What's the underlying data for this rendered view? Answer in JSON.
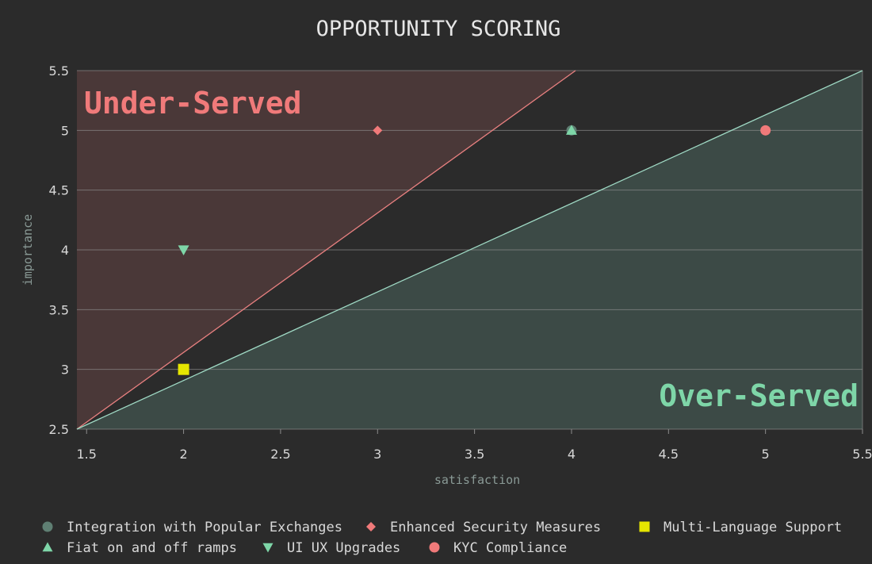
{
  "chart_data": {
    "type": "scatter",
    "title": "OPPORTUNITY SCORING",
    "xlabel": "satisfaction",
    "ylabel": "importance",
    "xlim": [
      1.45,
      5.5
    ],
    "ylim": [
      2.5,
      5.5
    ],
    "x_ticks": [
      "1.5",
      "2",
      "2.5",
      "3",
      "3.5",
      "4",
      "4.5",
      "5",
      "5.5"
    ],
    "y_ticks": [
      "2.5",
      "3",
      "3.5",
      "4",
      "4.5",
      "5",
      "5.5"
    ],
    "grid": "horizontal",
    "legend_position": "bottom",
    "regions": {
      "under_served": {
        "label": "Under-Served",
        "color": "#f07a7a"
      },
      "over_served": {
        "label": "Over-Served",
        "color": "#7ed6a8"
      }
    },
    "series": [
      {
        "name": "Integration with Popular Exchanges",
        "marker": "circle",
        "color": "#5f7f73",
        "x": [
          4
        ],
        "y": [
          5
        ]
      },
      {
        "name": "Enhanced Security Measures",
        "marker": "diamond",
        "color": "#f07a7a",
        "x": [
          3
        ],
        "y": [
          5
        ]
      },
      {
        "name": "Multi-Language Support",
        "marker": "square",
        "color": "#e6e600",
        "x": [
          2
        ],
        "y": [
          3
        ]
      },
      {
        "name": "Fiat on and off ramps",
        "marker": "triangle-up",
        "color": "#7ed6a8",
        "x": [
          4
        ],
        "y": [
          5
        ]
      },
      {
        "name": "UI UX Upgrades",
        "marker": "triangle-down",
        "color": "#7ed6a8",
        "x": [
          2
        ],
        "y": [
          4
        ]
      },
      {
        "name": "KYC Compliance",
        "marker": "circle",
        "color": "#f07a7a",
        "x": [
          5
        ],
        "y": [
          5
        ]
      }
    ]
  }
}
